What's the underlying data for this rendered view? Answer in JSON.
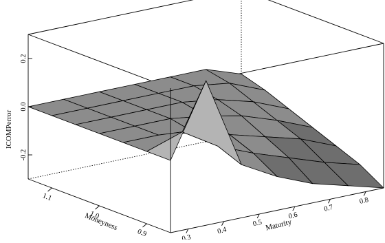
{
  "chart_data": {
    "type": "surface3d",
    "zlabel": "ICOMPerror",
    "xlabel": "Maturity",
    "ylabel": "Moneyness",
    "x_ticks": [
      "0.3",
      "0.4",
      "0.5",
      "0.6",
      "0.7",
      "0.8"
    ],
    "y_ticks": [
      "1.1",
      "1.0",
      "0.9"
    ],
    "z_ticks": [
      "0.2",
      "0.0",
      "-0.2"
    ],
    "xlim": [
      0.25,
      0.85
    ],
    "ylim": [
      0.85,
      1.15
    ],
    "zlim": [
      -0.3,
      0.3
    ],
    "grid": false,
    "colors": {
      "surface_light": "#b4b4b4",
      "surface_mid": "#8c8c8c",
      "surface_dark": "#6e6e6e",
      "mesh_line": "#000000",
      "box_line": "#000000"
    },
    "x": [
      0.25,
      0.35,
      0.45,
      0.55,
      0.65,
      0.75,
      0.85
    ],
    "y": [
      1.15,
      1.1,
      1.05,
      1.0,
      0.95,
      0.9,
      0.85
    ],
    "z": [
      [
        0.0,
        0.0,
        0.0,
        0.0,
        0.0,
        0.0,
        -0.05
      ],
      [
        0.0,
        0.0,
        0.0,
        0.0,
        0.0,
        -0.02,
        -0.08
      ],
      [
        0.0,
        0.0,
        0.0,
        0.0,
        -0.02,
        -0.06,
        -0.12
      ],
      [
        0.0,
        0.0,
        0.0,
        -0.02,
        -0.05,
        -0.1,
        -0.16
      ],
      [
        0.0,
        0.0,
        -0.02,
        -0.06,
        -0.1,
        -0.14,
        -0.2
      ],
      [
        0.0,
        0.05,
        -0.04,
        -0.1,
        -0.15,
        -0.2,
        -0.24
      ],
      [
        0.0,
        0.3,
        -0.08,
        -0.16,
        -0.22,
        -0.26,
        -0.3
      ]
    ]
  }
}
